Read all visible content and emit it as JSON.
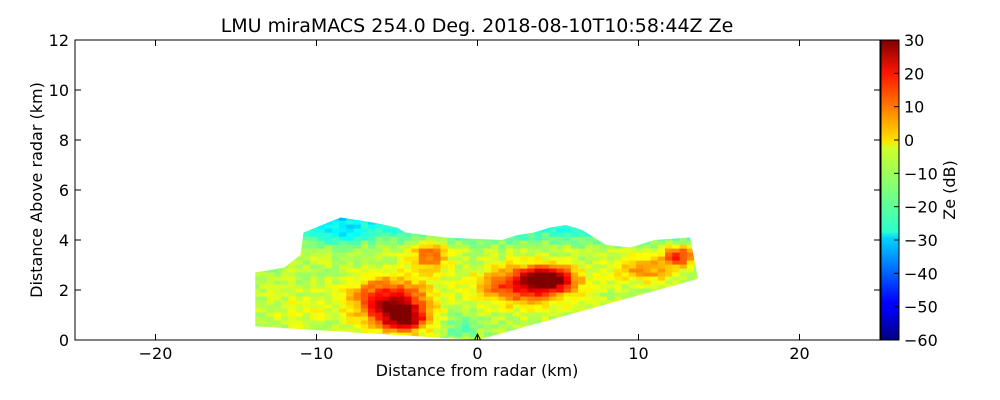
{
  "chart_data": {
    "type": "heatmap",
    "title": "LMU miraMACS 254.0 Deg. 2018-08-10T10:58:44Z  Ze",
    "xlabel": "Distance from radar (km)",
    "ylabel": "Distance Above radar  (km)",
    "xlim": [
      -25,
      25
    ],
    "ylim": [
      0,
      12
    ],
    "x_ticks": [
      -20,
      -10,
      0,
      10,
      20
    ],
    "x_tick_labels": [
      "−20",
      "−10",
      "0",
      "10",
      "20"
    ],
    "y_ticks": [
      0,
      2,
      4,
      6,
      8,
      10,
      12
    ],
    "y_tick_labels": [
      "0",
      "2",
      "4",
      "6",
      "8",
      "10",
      "12"
    ],
    "colorbar": {
      "label": "Ze (dB)",
      "range": [
        -60,
        30
      ],
      "ticks": [
        30,
        20,
        10,
        0,
        -10,
        -20,
        -30,
        -40,
        -50,
        -60
      ],
      "tick_labels": [
        "30",
        "20",
        "10",
        "0",
        "−10",
        "−20",
        "−30",
        "−40",
        "−50",
        "−60"
      ],
      "colormap": "jet"
    },
    "echo_region": {
      "outline_km": [
        [
          -13.8,
          0.55
        ],
        [
          -13.8,
          2.7
        ],
        [
          -12,
          2.9
        ],
        [
          -11,
          3.4
        ],
        [
          -10.8,
          4.3
        ],
        [
          -8.5,
          4.9
        ],
        [
          -6.5,
          4.7
        ],
        [
          -5,
          4.5
        ],
        [
          -4.5,
          4.3
        ],
        [
          -2,
          4.1
        ],
        [
          1.5,
          4.0
        ],
        [
          2.5,
          4.2
        ],
        [
          3.5,
          4.3
        ],
        [
          4.5,
          4.5
        ],
        [
          5.5,
          4.6
        ],
        [
          6.5,
          4.4
        ],
        [
          8,
          3.8
        ],
        [
          9.5,
          3.7
        ],
        [
          11,
          4.0
        ],
        [
          13.2,
          4.1
        ],
        [
          13.7,
          2.45
        ],
        [
          0,
          0.0
        ],
        [
          -13.8,
          0.55
        ]
      ],
      "cores": [
        {
          "x": -5.5,
          "y": 1.6,
          "rx": 2.6,
          "ry": 1.0,
          "ze": 24
        },
        {
          "x": -4.6,
          "y": 0.9,
          "rx": 1.6,
          "ry": 0.6,
          "ze": 26
        },
        {
          "x": -3.0,
          "y": 3.4,
          "rx": 1.2,
          "ry": 0.7,
          "ze": 12
        },
        {
          "x": 3.0,
          "y": 2.2,
          "rx": 3.0,
          "ry": 0.8,
          "ze": 24
        },
        {
          "x": 4.5,
          "y": 2.5,
          "rx": 1.6,
          "ry": 0.5,
          "ze": 26
        },
        {
          "x": -11.0,
          "y": 1.2,
          "rx": 2.0,
          "ry": 0.8,
          "ze": -5
        },
        {
          "x": 10.5,
          "y": 2.9,
          "rx": 2.2,
          "ry": 0.6,
          "ze": 8
        },
        {
          "x": 12.5,
          "y": 3.4,
          "rx": 1.0,
          "ry": 0.4,
          "ze": 18
        },
        {
          "x": -8.5,
          "y": 4.2,
          "rx": 1.5,
          "ry": 0.5,
          "ze": -18
        },
        {
          "x": -1.0,
          "y": 0.6,
          "rx": 1.2,
          "ry": 0.5,
          "ze": -20
        }
      ],
      "background_ze": -10,
      "edge_ze": -30
    }
  }
}
